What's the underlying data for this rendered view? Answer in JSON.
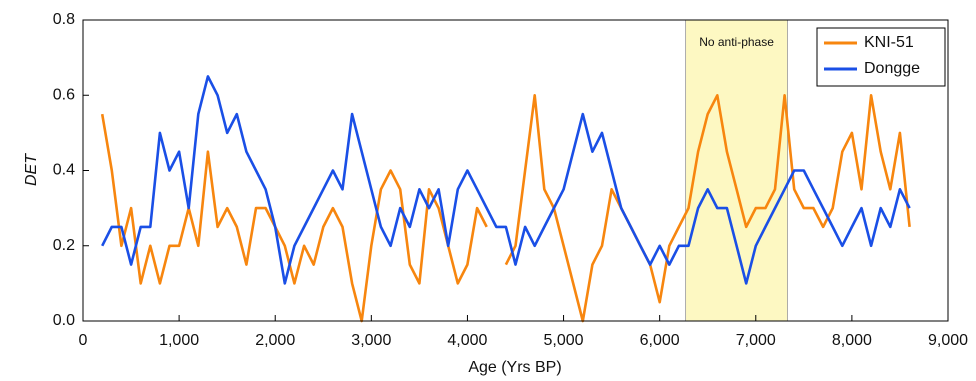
{
  "chart_data": {
    "type": "line",
    "xlabel": "Age (Yrs BP)",
    "ylabel": "DET",
    "xlim": [
      0,
      9000
    ],
    "ylim": [
      0,
      0.8
    ],
    "xticks": [
      0,
      {
        "value": 1000,
        "label": "1,000"
      },
      {
        "value": 2000,
        "label": "2,000"
      },
      {
        "value": 3000,
        "label": "3,000"
      },
      {
        "value": 4000,
        "label": "4,000"
      },
      {
        "value": 5000,
        "label": "5,000"
      },
      {
        "value": 6000,
        "label": "6,000"
      },
      {
        "value": 7000,
        "label": "7,000"
      },
      {
        "value": 8000,
        "label": "8,000"
      },
      {
        "value": 9000,
        "label": "9,000"
      }
    ],
    "yticks": [
      {
        "value": 0,
        "label": "0.0"
      },
      {
        "value": 0.2,
        "label": "0.2"
      },
      {
        "value": 0.4,
        "label": "0.4"
      },
      {
        "value": 0.6,
        "label": "0.6"
      },
      {
        "value": 0.8,
        "label": "0.8"
      }
    ],
    "legend": "upper right",
    "band": {
      "x": [
        6270,
        7330
      ],
      "label": "No anti-phase",
      "color": "#fdf8c2"
    },
    "x": [
      200,
      300,
      400,
      500,
      600,
      700,
      800,
      900,
      1000,
      1100,
      1200,
      1300,
      1400,
      1500,
      1600,
      1700,
      1800,
      1900,
      2000,
      2100,
      2200,
      2300,
      2400,
      2500,
      2600,
      2700,
      2800,
      2900,
      3000,
      3100,
      3200,
      3300,
      3400,
      3500,
      3600,
      3700,
      3800,
      3900,
      4000,
      4100,
      4200,
      4300,
      4400,
      4500,
      4600,
      4700,
      4800,
      4900,
      5000,
      5100,
      5200,
      5300,
      5400,
      5500,
      5600,
      5700,
      5800,
      5900,
      6000,
      6100,
      6200,
      6300,
      6400,
      6500,
      6600,
      6700,
      6800,
      6900,
      7000,
      7100,
      7200,
      7300,
      7400,
      7500,
      7600,
      7700,
      7800,
      7900,
      8000,
      8100,
      8200,
      8300,
      8400,
      8500,
      8600
    ],
    "series": [
      {
        "name": "KNI-51",
        "color": "#f7860f",
        "values": [
          0.55,
          0.4,
          0.2,
          0.3,
          0.1,
          0.2,
          0.1,
          0.2,
          0.2,
          0.3,
          0.2,
          0.45,
          0.25,
          0.3,
          0.25,
          0.15,
          0.3,
          0.3,
          0.25,
          0.2,
          0.1,
          0.2,
          0.15,
          0.25,
          0.3,
          0.25,
          0.1,
          0.0,
          0.2,
          0.35,
          0.4,
          0.35,
          0.15,
          0.1,
          0.35,
          0.3,
          0.2,
          0.1,
          0.15,
          0.3,
          0.25,
          null,
          0.15,
          0.2,
          0.4,
          0.6,
          0.35,
          0.3,
          0.2,
          0.1,
          0.0,
          0.15,
          0.2,
          0.35,
          0.3,
          0.25,
          0.2,
          0.15,
          0.05,
          0.2,
          0.25,
          0.3,
          0.45,
          0.55,
          0.6,
          0.45,
          0.35,
          0.25,
          0.3,
          0.3,
          0.35,
          0.6,
          0.35,
          0.3,
          0.3,
          0.25,
          0.3,
          0.45,
          0.5,
          0.35,
          0.6,
          0.45,
          0.35,
          0.5,
          0.25
        ]
      },
      {
        "name": "Dongge",
        "color": "#1a4fe6",
        "values": [
          0.2,
          0.25,
          0.25,
          0.15,
          0.25,
          0.25,
          0.5,
          0.4,
          0.45,
          0.3,
          0.55,
          0.65,
          0.6,
          0.5,
          0.55,
          0.45,
          0.4,
          0.35,
          0.25,
          0.1,
          0.2,
          0.25,
          0.3,
          0.35,
          0.4,
          0.35,
          0.55,
          0.45,
          0.35,
          0.25,
          0.2,
          0.3,
          0.25,
          0.35,
          0.3,
          0.35,
          0.2,
          0.35,
          0.4,
          0.35,
          0.3,
          0.25,
          0.25,
          0.15,
          0.25,
          0.2,
          0.25,
          0.3,
          0.35,
          0.45,
          0.55,
          0.45,
          0.5,
          0.4,
          0.3,
          0.25,
          0.2,
          0.15,
          0.2,
          0.15,
          0.2,
          0.2,
          0.3,
          0.35,
          0.3,
          0.3,
          0.2,
          0.1,
          0.2,
          0.25,
          0.3,
          0.35,
          0.4,
          0.4,
          0.35,
          0.3,
          0.25,
          0.2,
          0.25,
          0.3,
          0.2,
          0.3,
          0.25,
          0.35,
          0.3
        ]
      }
    ]
  }
}
